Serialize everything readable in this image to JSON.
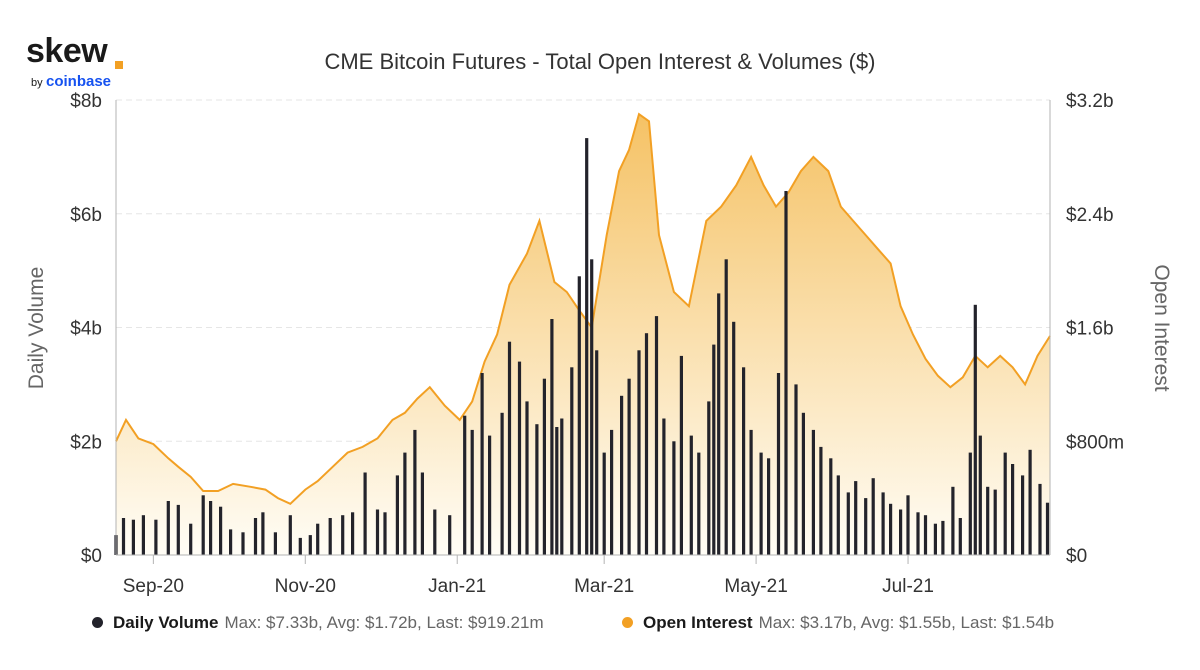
{
  "branding": {
    "logo": "skew",
    "by": "by",
    "brand": "coinbase"
  },
  "colors": {
    "volume": "#23232b",
    "open_interest": "#F2A024",
    "grid": "#e6e6e6",
    "axis": "#b3b3b3",
    "area_top": "#F5C265",
    "area_bottom": "#FFFDF6"
  },
  "chart_data": {
    "type": "bar+area",
    "title": "CME Bitcoin Futures - Total Open Interest & Volumes ($)",
    "x_range": [
      "2020-08-17",
      "2021-08-27"
    ],
    "x_ticks": [
      {
        "date": "2020-09-01",
        "label": "Sep-20"
      },
      {
        "date": "2020-11-01",
        "label": "Nov-20"
      },
      {
        "date": "2021-01-01",
        "label": "Jan-21"
      },
      {
        "date": "2021-03-01",
        "label": "Mar-21"
      },
      {
        "date": "2021-05-01",
        "label": "May-21"
      },
      {
        "date": "2021-07-01",
        "label": "Jul-21"
      }
    ],
    "y_left": {
      "label": "Daily Volume",
      "unit": "billions USD",
      "range": [
        0,
        8
      ],
      "ticks": [
        0,
        2,
        4,
        6,
        8
      ],
      "tick_labels": [
        "$0",
        "$2b",
        "$4b",
        "$6b",
        "$8b"
      ]
    },
    "y_right": {
      "label": "Open Interest",
      "unit": "billions USD",
      "range": [
        0,
        3.2
      ],
      "ticks": [
        0,
        0.8,
        1.6,
        2.4,
        3.2
      ],
      "tick_labels": [
        "$0",
        "$800m",
        "$1.6b",
        "$2.4b",
        "$3.2b"
      ]
    },
    "grid": true,
    "legend_position": "bottom",
    "series": [
      {
        "name": "Daily Volume",
        "kind": "bar",
        "axis": "left",
        "legend_stats": "Max: $7.33b, Avg: $1.72b, Last: $919.21m",
        "points": [
          [
            "2020-08-17",
            0.35
          ],
          [
            "2020-08-20",
            0.65
          ],
          [
            "2020-08-24",
            0.62
          ],
          [
            "2020-08-28",
            0.7
          ],
          [
            "2020-09-02",
            0.62
          ],
          [
            "2020-09-07",
            0.95
          ],
          [
            "2020-09-11",
            0.88
          ],
          [
            "2020-09-16",
            0.55
          ],
          [
            "2020-09-21",
            1.05
          ],
          [
            "2020-09-24",
            0.95
          ],
          [
            "2020-09-28",
            0.85
          ],
          [
            "2020-10-02",
            0.45
          ],
          [
            "2020-10-07",
            0.4
          ],
          [
            "2020-10-12",
            0.65
          ],
          [
            "2020-10-15",
            0.75
          ],
          [
            "2020-10-20",
            0.4
          ],
          [
            "2020-10-26",
            0.7
          ],
          [
            "2020-10-30",
            0.3
          ],
          [
            "2020-11-03",
            0.35
          ],
          [
            "2020-11-06",
            0.55
          ],
          [
            "2020-11-11",
            0.65
          ],
          [
            "2020-11-16",
            0.7
          ],
          [
            "2020-11-20",
            0.75
          ],
          [
            "2020-11-25",
            1.45
          ],
          [
            "2020-11-30",
            0.8
          ],
          [
            "2020-12-03",
            0.75
          ],
          [
            "2020-12-08",
            1.4
          ],
          [
            "2020-12-11",
            1.8
          ],
          [
            "2020-12-15",
            2.2
          ],
          [
            "2020-12-18",
            1.45
          ],
          [
            "2020-12-23",
            0.8
          ],
          [
            "2020-12-29",
            0.7
          ],
          [
            "2021-01-04",
            2.45
          ],
          [
            "2021-01-07",
            2.2
          ],
          [
            "2021-01-11",
            3.2
          ],
          [
            "2021-01-14",
            2.1
          ],
          [
            "2021-01-19",
            2.5
          ],
          [
            "2021-01-22",
            3.75
          ],
          [
            "2021-01-26",
            3.4
          ],
          [
            "2021-01-29",
            2.7
          ],
          [
            "2021-02-02",
            2.3
          ],
          [
            "2021-02-05",
            3.1
          ],
          [
            "2021-02-08",
            4.15
          ],
          [
            "2021-02-10",
            2.25
          ],
          [
            "2021-02-12",
            2.4
          ],
          [
            "2021-02-16",
            3.3
          ],
          [
            "2021-02-19",
            4.9
          ],
          [
            "2021-02-22",
            7.33
          ],
          [
            "2021-02-24",
            5.2
          ],
          [
            "2021-02-26",
            3.6
          ],
          [
            "2021-03-01",
            1.8
          ],
          [
            "2021-03-04",
            2.2
          ],
          [
            "2021-03-08",
            2.8
          ],
          [
            "2021-03-11",
            3.1
          ],
          [
            "2021-03-15",
            3.6
          ],
          [
            "2021-03-18",
            3.9
          ],
          [
            "2021-03-22",
            4.2
          ],
          [
            "2021-03-25",
            2.4
          ],
          [
            "2021-03-29",
            2.0
          ],
          [
            "2021-04-01",
            3.5
          ],
          [
            "2021-04-05",
            2.1
          ],
          [
            "2021-04-08",
            1.8
          ],
          [
            "2021-04-12",
            2.7
          ],
          [
            "2021-04-14",
            3.7
          ],
          [
            "2021-04-16",
            4.6
          ],
          [
            "2021-04-19",
            5.2
          ],
          [
            "2021-04-22",
            4.1
          ],
          [
            "2021-04-26",
            3.3
          ],
          [
            "2021-04-29",
            2.2
          ],
          [
            "2021-05-03",
            1.8
          ],
          [
            "2021-05-06",
            1.7
          ],
          [
            "2021-05-10",
            3.2
          ],
          [
            "2021-05-13",
            6.4
          ],
          [
            "2021-05-17",
            3.0
          ],
          [
            "2021-05-20",
            2.5
          ],
          [
            "2021-05-24",
            2.2
          ],
          [
            "2021-05-27",
            1.9
          ],
          [
            "2021-05-31",
            1.7
          ],
          [
            "2021-06-03",
            1.4
          ],
          [
            "2021-06-07",
            1.1
          ],
          [
            "2021-06-10",
            1.3
          ],
          [
            "2021-06-14",
            1.0
          ],
          [
            "2021-06-17",
            1.35
          ],
          [
            "2021-06-21",
            1.1
          ],
          [
            "2021-06-24",
            0.9
          ],
          [
            "2021-06-28",
            0.8
          ],
          [
            "2021-07-01",
            1.05
          ],
          [
            "2021-07-05",
            0.75
          ],
          [
            "2021-07-08",
            0.7
          ],
          [
            "2021-07-12",
            0.55
          ],
          [
            "2021-07-15",
            0.6
          ],
          [
            "2021-07-19",
            1.2
          ],
          [
            "2021-07-22",
            0.65
          ],
          [
            "2021-07-26",
            1.8
          ],
          [
            "2021-07-28",
            4.4
          ],
          [
            "2021-07-30",
            2.1
          ],
          [
            "2021-08-02",
            1.2
          ],
          [
            "2021-08-05",
            1.15
          ],
          [
            "2021-08-09",
            1.8
          ],
          [
            "2021-08-12",
            1.6
          ],
          [
            "2021-08-16",
            1.4
          ],
          [
            "2021-08-19",
            1.85
          ],
          [
            "2021-08-23",
            1.25
          ],
          [
            "2021-08-26",
            0.92
          ]
        ]
      },
      {
        "name": "Open Interest",
        "kind": "area",
        "axis": "right",
        "legend_stats": "Max: $3.17b, Avg: $1.55b, Last: $1.54b",
        "points": [
          [
            "2020-08-17",
            0.8
          ],
          [
            "2020-08-21",
            0.95
          ],
          [
            "2020-08-26",
            0.82
          ],
          [
            "2020-09-01",
            0.78
          ],
          [
            "2020-09-07",
            0.68
          ],
          [
            "2020-09-11",
            0.62
          ],
          [
            "2020-09-16",
            0.55
          ],
          [
            "2020-09-21",
            0.45
          ],
          [
            "2020-09-27",
            0.45
          ],
          [
            "2020-10-03",
            0.5
          ],
          [
            "2020-10-10",
            0.48
          ],
          [
            "2020-10-16",
            0.46
          ],
          [
            "2020-10-21",
            0.4
          ],
          [
            "2020-10-26",
            0.36
          ],
          [
            "2020-11-01",
            0.46
          ],
          [
            "2020-11-06",
            0.52
          ],
          [
            "2020-11-12",
            0.62
          ],
          [
            "2020-11-18",
            0.72
          ],
          [
            "2020-11-24",
            0.76
          ],
          [
            "2020-11-30",
            0.82
          ],
          [
            "2020-12-06",
            0.95
          ],
          [
            "2020-12-11",
            1.0
          ],
          [
            "2020-12-16",
            1.1
          ],
          [
            "2020-12-21",
            1.18
          ],
          [
            "2020-12-27",
            1.05
          ],
          [
            "2021-01-02",
            0.95
          ],
          [
            "2021-01-07",
            1.08
          ],
          [
            "2021-01-12",
            1.36
          ],
          [
            "2021-01-17",
            1.55
          ],
          [
            "2021-01-22",
            1.9
          ],
          [
            "2021-01-29",
            2.12
          ],
          [
            "2021-02-03",
            2.35
          ],
          [
            "2021-02-09",
            1.92
          ],
          [
            "2021-02-14",
            1.85
          ],
          [
            "2021-02-19",
            1.72
          ],
          [
            "2021-02-24",
            1.6
          ],
          [
            "2021-03-02",
            2.25
          ],
          [
            "2021-03-07",
            2.7
          ],
          [
            "2021-03-11",
            2.85
          ],
          [
            "2021-03-15",
            3.1
          ],
          [
            "2021-03-19",
            3.05
          ],
          [
            "2021-03-23",
            2.25
          ],
          [
            "2021-03-29",
            1.85
          ],
          [
            "2021-04-04",
            1.75
          ],
          [
            "2021-04-11",
            2.35
          ],
          [
            "2021-04-17",
            2.45
          ],
          [
            "2021-04-23",
            2.6
          ],
          [
            "2021-04-29",
            2.8
          ],
          [
            "2021-05-04",
            2.6
          ],
          [
            "2021-05-09",
            2.45
          ],
          [
            "2021-05-14",
            2.55
          ],
          [
            "2021-05-19",
            2.7
          ],
          [
            "2021-05-24",
            2.8
          ],
          [
            "2021-05-30",
            2.7
          ],
          [
            "2021-06-04",
            2.45
          ],
          [
            "2021-06-09",
            2.35
          ],
          [
            "2021-06-14",
            2.25
          ],
          [
            "2021-06-19",
            2.15
          ],
          [
            "2021-06-24",
            2.05
          ],
          [
            "2021-06-28",
            1.75
          ],
          [
            "2021-07-03",
            1.55
          ],
          [
            "2021-07-08",
            1.38
          ],
          [
            "2021-07-13",
            1.26
          ],
          [
            "2021-07-18",
            1.18
          ],
          [
            "2021-07-23",
            1.25
          ],
          [
            "2021-07-28",
            1.4
          ],
          [
            "2021-08-02",
            1.32
          ],
          [
            "2021-08-07",
            1.4
          ],
          [
            "2021-08-12",
            1.32
          ],
          [
            "2021-08-17",
            1.2
          ],
          [
            "2021-08-22",
            1.4
          ],
          [
            "2021-08-27",
            1.54
          ]
        ]
      }
    ]
  }
}
